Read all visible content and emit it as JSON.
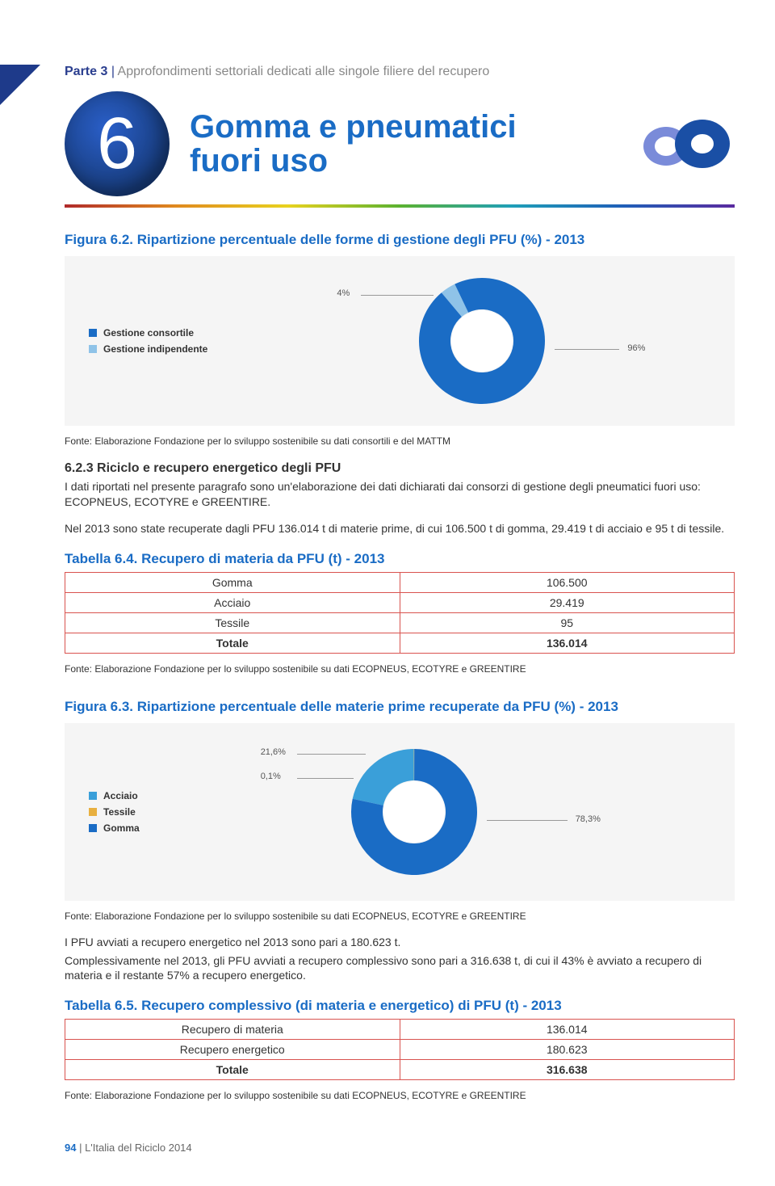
{
  "breadcrumb": {
    "pre": "Parte 3 ",
    "sep": "| ",
    "sub": "Approfondimenti settoriali dedicati alle singole filiere del recupero"
  },
  "badge": {
    "number": "6"
  },
  "title_line1": "Gomma e pneumatici",
  "title_line2": "fuori uso",
  "fig62": {
    "title": "Figura 6.2. Ripartizione percentuale delle forme di gestione degli PFU (%) - 2013",
    "legend": [
      {
        "label": "Gestione consortile",
        "color": "#1a6cc5"
      },
      {
        "label": "Gestione indipendente",
        "color": "#8fc3e8"
      }
    ],
    "chart": {
      "type": "donut",
      "slices": [
        {
          "label": "4%",
          "value": 4,
          "color": "#8fc3e8"
        },
        {
          "label": "96%",
          "value": 96,
          "color": "#1a6cc5"
        }
      ],
      "inner_ratio": 0.5,
      "background": "#f5f5f5"
    },
    "source": "Fonte: Elaborazione Fondazione per lo sviluppo sostenibile su dati consortili e del MATTM"
  },
  "section623": {
    "head": "6.2.3 Riciclo e recupero energetico degli PFU",
    "p1": "I dati riportati nel presente paragrafo sono un'elaborazione dei dati dichiarati dai consorzi di gestione degli pneumatici fuori uso: ECOPNEUS, ECOTYRE e GREENTIRE.",
    "p2": "Nel 2013 sono state recuperate dagli PFU 136.014 t di materie prime, di cui 106.500 t di gomma, 29.419 t di acciaio e 95 t di tessile."
  },
  "tab64": {
    "title": "Tabella 6.4. Recupero di materia da PFU (t) - 2013",
    "rows": [
      {
        "label": "Gomma",
        "value": "106.500"
      },
      {
        "label": "Acciaio",
        "value": "29.419"
      },
      {
        "label": "Tessile",
        "value": "95"
      }
    ],
    "total": {
      "label": "Totale",
      "value": "136.014"
    },
    "source": "Fonte: Elaborazione Fondazione per lo sviluppo sostenibile su dati ECOPNEUS, ECOTYRE e GREENTIRE"
  },
  "fig63": {
    "title": "Figura 6.3. Ripartizione percentuale delle materie prime recuperate da PFU (%) - 2013",
    "legend": [
      {
        "label": "Acciaio",
        "color": "#3a9fd9"
      },
      {
        "label": "Tessile",
        "color": "#e8b040"
      },
      {
        "label": "Gomma",
        "color": "#1a6cc5"
      }
    ],
    "chart": {
      "type": "donut",
      "slices": [
        {
          "label": "21,6%",
          "value": 21.6,
          "color": "#3a9fd9"
        },
        {
          "label": "0,1%",
          "value": 0.1,
          "color": "#e8b040"
        },
        {
          "label": "78,3%",
          "value": 78.3,
          "color": "#1a6cc5"
        }
      ],
      "inner_ratio": 0.5,
      "background": "#f5f5f5"
    },
    "source": "Fonte: Elaborazione Fondazione per lo sviluppo sostenibile su dati ECOPNEUS, ECOTYRE e GREENTIRE"
  },
  "paragraph_mid": {
    "p1": "I PFU avviati a recupero energetico nel 2013 sono pari a 180.623 t.",
    "p2": "Complessivamente nel 2013, gli PFU avviati a recupero complessivo sono pari a 316.638 t, di cui il 43% è avviato a recupero di materia e il restante 57% a recupero energetico."
  },
  "tab65": {
    "title": "Tabella 6.5. Recupero complessivo (di materia e energetico) di PFU (t) - 2013",
    "rows": [
      {
        "label": "Recupero di materia",
        "value": "136.014"
      },
      {
        "label": "Recupero energetico",
        "value": "180.623"
      }
    ],
    "total": {
      "label": "Totale",
      "value": "316.638"
    },
    "source": "Fonte: Elaborazione Fondazione per lo sviluppo sostenibile su dati ECOPNEUS, ECOTYRE e GREENTIRE"
  },
  "footer": {
    "page": "94",
    "sep": " | ",
    "doc": "L'Italia del Riciclo 2014"
  }
}
